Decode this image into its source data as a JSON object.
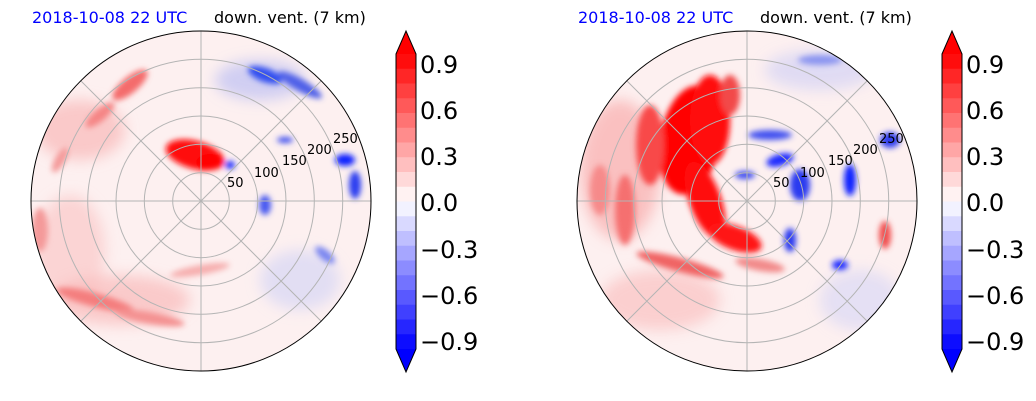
{
  "chart_data": [
    {
      "type": "heatmap",
      "projection": "polar",
      "title_left": "2018-10-08 22 UTC",
      "title_right": "down. vent. (7 km)",
      "radial_ticks": [
        "50",
        "100",
        "150",
        "200",
        "250"
      ],
      "radial_range": [
        0,
        300
      ],
      "grid": true,
      "colorbar": {
        "ticks": [
          "0.9",
          "0.6",
          "0.3",
          "0.0",
          "−0.3",
          "−0.6",
          "−0.9"
        ],
        "range": [
          -1.0,
          1.0
        ],
        "extend": "both",
        "colormap": "bwr"
      }
    },
    {
      "type": "heatmap",
      "projection": "polar",
      "title_left": "2018-10-08 22 UTC",
      "title_right": "down. vent. (7 km)",
      "radial_ticks": [
        "50",
        "100",
        "150",
        "200",
        "250"
      ],
      "radial_range": [
        0,
        300
      ],
      "grid": true,
      "colorbar": {
        "ticks": [
          "0.9",
          "0.6",
          "0.3",
          "0.0",
          "−0.3",
          "−0.6",
          "−0.9"
        ],
        "range": [
          -1.0,
          1.0
        ],
        "extend": "both",
        "colormap": "bwr"
      }
    }
  ]
}
